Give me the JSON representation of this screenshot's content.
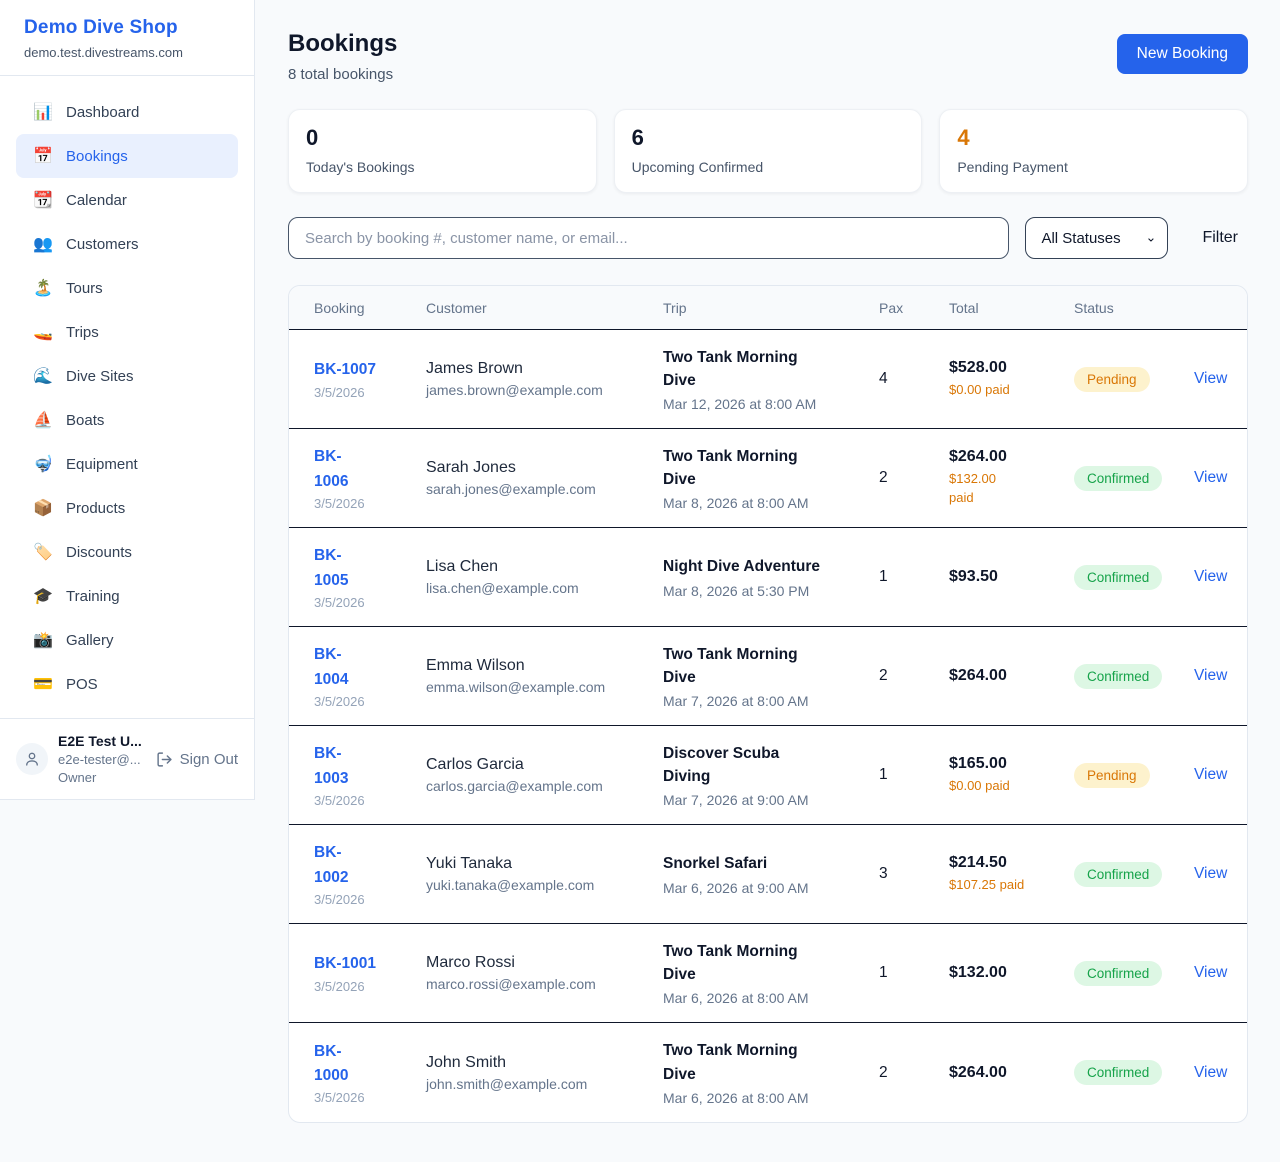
{
  "colors": {
    "accent_blue": "#2563eb",
    "pending_orange": "#d97706",
    "confirmed_green": "#16a34a",
    "pending_badge_bg": "#fdf2cd",
    "confirmed_badge_bg": "#ddf7e4",
    "page_background": "#f8fafc"
  },
  "sidebar": {
    "brand": {
      "title": "Demo Dive Shop",
      "domain": "demo.test.divestreams.com"
    },
    "nav": [
      {
        "name": "dashboard",
        "icon": "bar-chart-icon",
        "glyph": "📊",
        "label": "Dashboard",
        "active": false
      },
      {
        "name": "bookings",
        "icon": "calendar-icon",
        "glyph": "📅",
        "label": "Bookings",
        "active": true
      },
      {
        "name": "calendar",
        "icon": "tear-off-calendar-icon",
        "glyph": "📆",
        "label": "Calendar",
        "active": false
      },
      {
        "name": "customers",
        "icon": "people-icon",
        "glyph": "👥",
        "label": "Customers",
        "active": false
      },
      {
        "name": "tours",
        "icon": "island-icon",
        "glyph": "🏝️",
        "label": "Tours",
        "active": false
      },
      {
        "name": "trips",
        "icon": "speedboat-icon",
        "glyph": "🚤",
        "label": "Trips",
        "active": false
      },
      {
        "name": "dive-sites",
        "icon": "wave-icon",
        "glyph": "🌊",
        "label": "Dive Sites",
        "active": false
      },
      {
        "name": "boats",
        "icon": "sailboat-icon",
        "glyph": "⛵",
        "label": "Boats",
        "active": false
      },
      {
        "name": "equipment",
        "icon": "diving-mask-icon",
        "glyph": "🤿",
        "label": "Equipment",
        "active": false
      },
      {
        "name": "products",
        "icon": "package-icon",
        "glyph": "📦",
        "label": "Products",
        "active": false
      },
      {
        "name": "discounts",
        "icon": "label-tag-icon",
        "glyph": "🏷️",
        "label": "Discounts",
        "active": false
      },
      {
        "name": "training",
        "icon": "graduation-cap-icon",
        "glyph": "🎓",
        "label": "Training",
        "active": false
      },
      {
        "name": "gallery",
        "icon": "camera-flash-icon",
        "glyph": "📸",
        "label": "Gallery",
        "active": false
      },
      {
        "name": "pos",
        "icon": "credit-card-icon",
        "glyph": "💳",
        "label": "POS",
        "active": false
      }
    ],
    "user": {
      "name": "E2E Test U...",
      "email": "e2e-tester@...",
      "role": "Owner",
      "sign_out_label": "Sign Out"
    }
  },
  "header": {
    "title": "Bookings",
    "subtitle": "8 total bookings",
    "new_booking_label": "New Booking"
  },
  "stats": [
    {
      "value": "0",
      "label": "Today's Bookings",
      "highlight": false
    },
    {
      "value": "6",
      "label": "Upcoming Confirmed",
      "highlight": false
    },
    {
      "value": "4",
      "label": "Pending Payment",
      "highlight": true
    }
  ],
  "filters": {
    "search_placeholder": "Search by booking #, customer name, or email...",
    "status_selected": "All Statuses",
    "filter_label": "Filter"
  },
  "table": {
    "columns": [
      "Booking",
      "Customer",
      "Trip",
      "Pax",
      "Total",
      "Status"
    ],
    "rows": [
      {
        "booking_id": "BK-1007",
        "booking_date": "3/5/2026",
        "customer_name": "James Brown",
        "customer_email": "james.brown@example.com",
        "trip_name": "Two Tank Morning\nDive",
        "trip_datetime": "Mar 12, 2026 at 8:00 AM",
        "pax": "4",
        "total": "$528.00",
        "paid": "$0.00 paid",
        "status": "Pending",
        "view_label": "View"
      },
      {
        "booking_id": "BK-\n1006",
        "booking_date": "3/5/2026",
        "customer_name": "Sarah Jones",
        "customer_email": "sarah.jones@example.com",
        "trip_name": "Two Tank Morning\nDive",
        "trip_datetime": "Mar 8, 2026 at 8:00 AM",
        "pax": "2",
        "total": "$264.00",
        "paid": "$132.00\npaid",
        "status": "Confirmed",
        "view_label": "View"
      },
      {
        "booking_id": "BK-\n1005",
        "booking_date": "3/5/2026",
        "customer_name": "Lisa Chen",
        "customer_email": "lisa.chen@example.com",
        "trip_name": "Night Dive Adventure",
        "trip_datetime": "Mar 8, 2026 at 5:30 PM",
        "pax": "1",
        "total": "$93.50",
        "paid": null,
        "status": "Confirmed",
        "view_label": "View"
      },
      {
        "booking_id": "BK-\n1004",
        "booking_date": "3/5/2026",
        "customer_name": "Emma Wilson",
        "customer_email": "emma.wilson@example.com",
        "trip_name": "Two Tank Morning\nDive",
        "trip_datetime": "Mar 7, 2026 at 8:00 AM",
        "pax": "2",
        "total": "$264.00",
        "paid": null,
        "status": "Confirmed",
        "view_label": "View"
      },
      {
        "booking_id": "BK-\n1003",
        "booking_date": "3/5/2026",
        "customer_name": "Carlos Garcia",
        "customer_email": "carlos.garcia@example.com",
        "trip_name": "Discover Scuba\nDiving",
        "trip_datetime": "Mar 7, 2026 at 9:00 AM",
        "pax": "1",
        "total": "$165.00",
        "paid": "$0.00 paid",
        "status": "Pending",
        "view_label": "View"
      },
      {
        "booking_id": "BK-\n1002",
        "booking_date": "3/5/2026",
        "customer_name": "Yuki Tanaka",
        "customer_email": "yuki.tanaka@example.com",
        "trip_name": "Snorkel Safari",
        "trip_datetime": "Mar 6, 2026 at 9:00 AM",
        "pax": "3",
        "total": "$214.50",
        "paid": "$107.25 paid",
        "status": "Confirmed",
        "view_label": "View"
      },
      {
        "booking_id": "BK-1001",
        "booking_date": "3/5/2026",
        "customer_name": "Marco Rossi",
        "customer_email": "marco.rossi@example.com",
        "trip_name": "Two Tank Morning\nDive",
        "trip_datetime": "Mar 6, 2026 at 8:00 AM",
        "pax": "1",
        "total": "$132.00",
        "paid": null,
        "status": "Confirmed",
        "view_label": "View"
      },
      {
        "booking_id": "BK-\n1000",
        "booking_date": "3/5/2026",
        "customer_name": "John Smith",
        "customer_email": "john.smith@example.com",
        "trip_name": "Two Tank Morning\nDive",
        "trip_datetime": "Mar 6, 2026 at 8:00 AM",
        "pax": "2",
        "total": "$264.00",
        "paid": null,
        "status": "Confirmed",
        "view_label": "View"
      }
    ]
  }
}
